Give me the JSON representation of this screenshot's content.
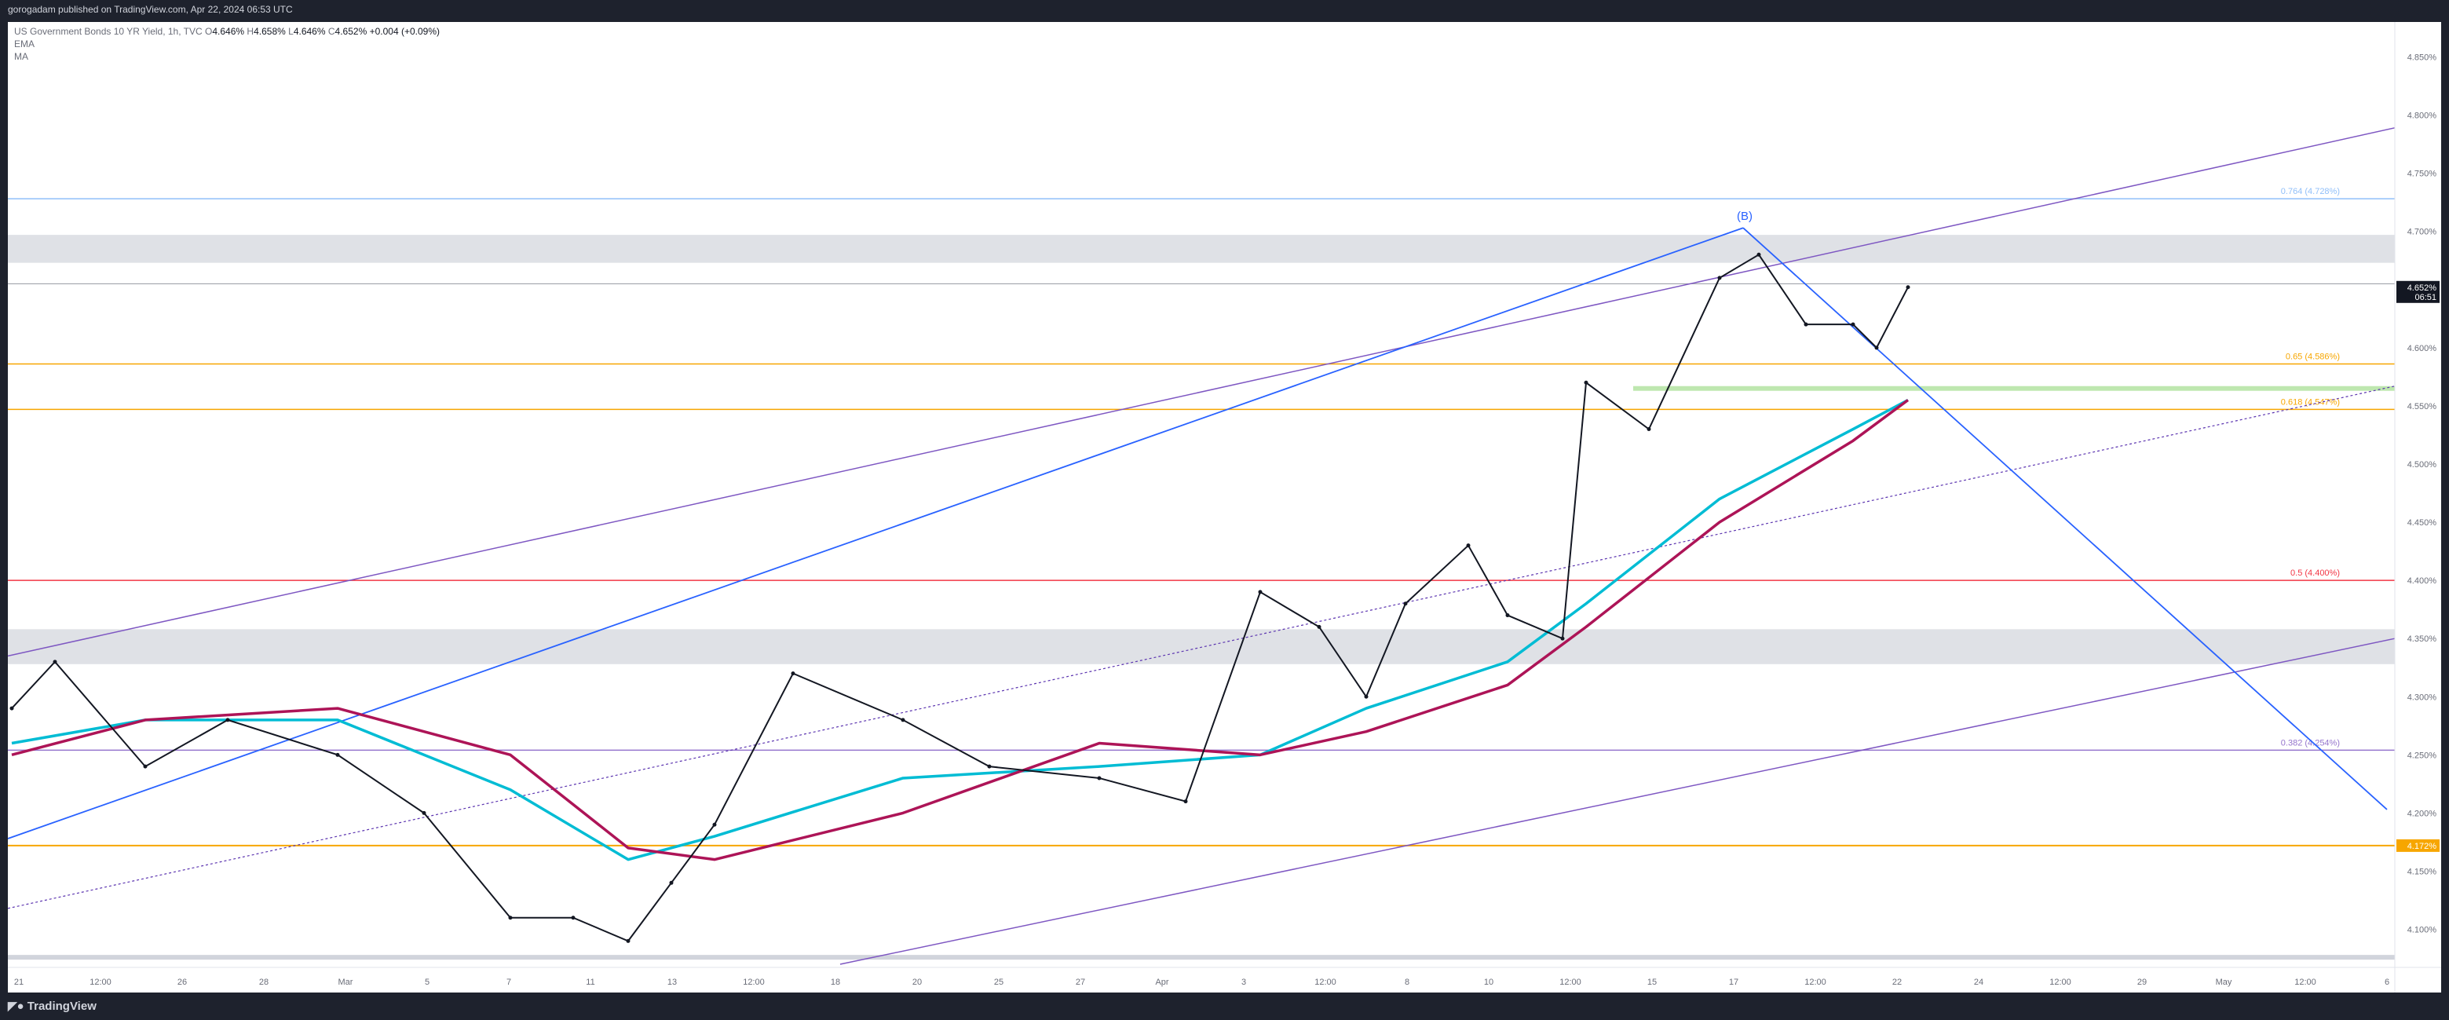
{
  "header": {
    "published_text": "gorogadam published on TradingView.com, Apr 22, 2024 06:53 UTC"
  },
  "legend": {
    "symbol": "US Government Bonds 10 YR Yield, 1h, TVC",
    "open_label": "O",
    "open": "4.646%",
    "high_label": "H",
    "high": "4.658%",
    "low_label": "L",
    "low": "4.646%",
    "close_label": "C",
    "close": "4.652%",
    "change": "+0.004 (+0.09%)",
    "indicator_1": "EMA",
    "indicator_2": "MA"
  },
  "footer": {
    "brand": "TradingView"
  },
  "colors": {
    "ema": "#00bcd4",
    "ma": "#ad1457",
    "trendline_blue": "#2962ff",
    "channel_purple": "#7e57c2",
    "price_label_bg": "#131722",
    "level_orange": "#f7a600"
  },
  "chart_data": {
    "type": "line",
    "series": [
      {
        "name": "",
        "style": "candles",
        "x": [
          "Feb 21",
          "Feb 23",
          "Feb 26",
          "Feb 28",
          "Mar 1",
          "Mar 4",
          "Mar 6",
          "Mar 8",
          "Mar 11",
          "Mar 12",
          "Mar 14",
          "Mar 18",
          "Mar 20",
          "Mar 22",
          "Mar 26",
          "Mar 28",
          "Apr 1",
          "Apr 3",
          "Apr 4",
          "Apr 5",
          "Apr 8",
          "Apr 9",
          "Apr 10",
          "Apr 11",
          "Apr 12",
          "Apr 15",
          "Apr 16",
          "Apr 17",
          "Apr 18",
          "Apr 19",
          "Apr 22"
        ],
        "values": [
          4.29,
          4.33,
          4.24,
          4.28,
          4.25,
          4.2,
          4.11,
          4.11,
          4.09,
          4.14,
          4.19,
          4.32,
          4.28,
          4.24,
          4.23,
          4.21,
          4.39,
          4.36,
          4.3,
          4.38,
          4.43,
          4.37,
          4.35,
          4.57,
          4.53,
          4.66,
          4.68,
          4.62,
          4.62,
          4.6,
          4.652
        ]
      },
      {
        "name": "EMA",
        "x": [
          "Feb 21",
          "Feb 26",
          "Mar 1",
          "Mar 6",
          "Mar 11",
          "Mar 14",
          "Mar 20",
          "Mar 26",
          "Apr 1",
          "Apr 4",
          "Apr 9",
          "Apr 11",
          "Apr 15",
          "Apr 18",
          "Apr 22"
        ],
        "values": [
          4.26,
          4.28,
          4.28,
          4.22,
          4.16,
          4.18,
          4.23,
          4.24,
          4.25,
          4.29,
          4.33,
          4.38,
          4.47,
          4.53,
          4.555
        ]
      },
      {
        "name": "MA",
        "x": [
          "Feb 21",
          "Feb 26",
          "Mar 1",
          "Mar 6",
          "Mar 11",
          "Mar 14",
          "Mar 20",
          "Mar 26",
          "Apr 1",
          "Apr 4",
          "Apr 9",
          "Apr 11",
          "Apr 15",
          "Apr 18",
          "Apr 22"
        ],
        "values": [
          4.25,
          4.28,
          4.29,
          4.25,
          4.17,
          4.16,
          4.2,
          4.26,
          4.25,
          4.27,
          4.31,
          4.36,
          4.45,
          4.52,
          4.555
        ]
      }
    ],
    "y_ticks": [
      "4.850%",
      "4.800%",
      "4.750%",
      "4.700%",
      "4.600%",
      "4.550%",
      "4.500%",
      "4.450%",
      "4.400%",
      "4.350%",
      "4.300%",
      "4.250%",
      "4.200%",
      "4.150%",
      "4.100%"
    ],
    "x_ticks": [
      "21",
      "12:00",
      "26",
      "28",
      "Mar",
      "5",
      "7",
      "11",
      "13",
      "12:00",
      "18",
      "20",
      "25",
      "27",
      "Apr",
      "3",
      "12:00",
      "8",
      "10",
      "12:00",
      "15",
      "17",
      "12:00",
      "22",
      "24",
      "12:00",
      "29",
      "May",
      "12:00",
      "6"
    ],
    "ylim": [
      4.07,
      4.88
    ],
    "fib_levels": [
      {
        "label": "0.764 (4.728%)",
        "value": 4.728,
        "color": "#90bff9"
      },
      {
        "label": "0.65 (4.586%)",
        "value": 4.586,
        "color": "#f7a600"
      },
      {
        "label": "0.618 (4.547%)",
        "value": 4.547,
        "color": "#f7a600"
      },
      {
        "label": "0.5 (4.400%)",
        "value": 4.4,
        "color": "#f23645"
      },
      {
        "label": "0.382 (4.254%)",
        "value": 4.254,
        "color": "#9575cd"
      }
    ],
    "zones": [
      {
        "from": 4.673,
        "to": 4.697
      },
      {
        "from": 4.328,
        "to": 4.358
      }
    ],
    "price_labels": [
      {
        "text": "4.652%",
        "sub": "06:51",
        "value": 4.652
      },
      {
        "text": "4.172%",
        "value": 4.172
      }
    ],
    "annotations": [
      {
        "text": "(B)"
      }
    ]
  }
}
